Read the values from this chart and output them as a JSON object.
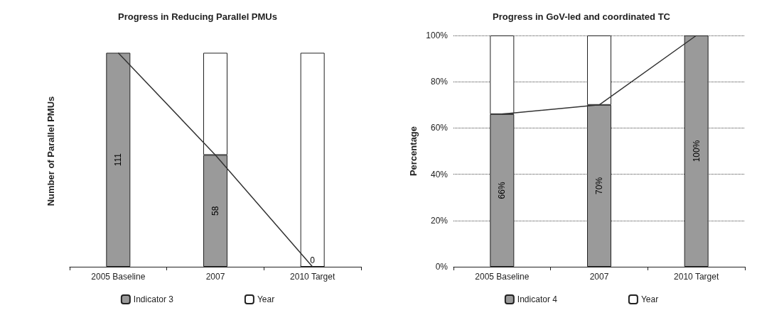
{
  "chart_data": [
    {
      "type": "bar",
      "title": "Progress in Reducing Parallel PMUs",
      "ylabel": "Number of Parallel PMUs",
      "categories": [
        "2005 Baseline",
        "2007",
        "2010 Target"
      ],
      "stacked": true,
      "legend": "bottom",
      "tick_labels": "x",
      "grid": false,
      "series": [
        {
          "name": "Indicator 3",
          "color": "#9a9a9a",
          "values": [
            111,
            58,
            0
          ],
          "data_labels": true
        },
        {
          "name": "Year",
          "color": "#ffffff",
          "values": [
            0,
            53,
            111
          ]
        },
        {
          "type": "line",
          "color": "#333333",
          "values": [
            111,
            58,
            0
          ],
          "marker": "none"
        }
      ]
    },
    {
      "type": "bar",
      "title": "Progress in GoV-led and coordinated TC",
      "ylabel": "Percentage",
      "categories": [
        "2005 Baseline",
        "2007",
        "2010 Target"
      ],
      "stacked": true,
      "legend": "bottom",
      "grid": "y",
      "ylim": [
        0,
        100
      ],
      "yticks": [
        {
          "value": 0,
          "label": "0%"
        },
        {
          "value": 20,
          "label": "20%"
        },
        {
          "value": 40,
          "label": "40%"
        },
        {
          "value": 60,
          "label": "60%"
        },
        {
          "value": 80,
          "label": "80%"
        },
        {
          "value": 100,
          "label": "100%"
        }
      ],
      "series": [
        {
          "name": "Indicator 4",
          "color": "#9a9a9a",
          "values": [
            66,
            70,
            100
          ],
          "value_labels": [
            "66%",
            "70%",
            "100%"
          ]
        },
        {
          "name": "Year",
          "color": "#ffffff",
          "values": [
            34,
            30,
            0
          ]
        },
        {
          "type": "line",
          "color": "#333333",
          "values": [
            66,
            70,
            100
          ],
          "marker": "none"
        }
      ]
    }
  ]
}
